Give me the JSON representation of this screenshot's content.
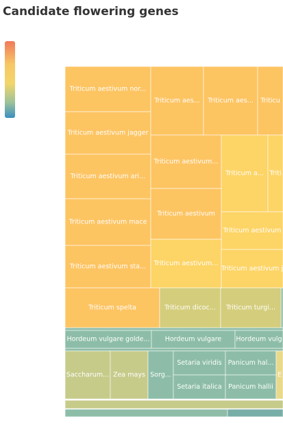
{
  "title": "Candidate flowering genes",
  "cells": [
    {
      "label": "Triticum aestivum nor..."
    },
    {
      "label": "Triticum aestivum jagger"
    },
    {
      "label": "Triticum aestivum ari..."
    },
    {
      "label": "Triticum aestivum mace"
    },
    {
      "label": "Triticum aestivum sta..."
    },
    {
      "label": "Triticum aes..."
    },
    {
      "label": "Triticum aes..."
    },
    {
      "label": "Triticu"
    },
    {
      "label": "Triticum aestivum..."
    },
    {
      "label": "Triticum a..."
    },
    {
      "label": "Triti"
    },
    {
      "label": "Triticum aestivum"
    },
    {
      "label": "Triticum aestivum"
    },
    {
      "label": "Triticum aestivum..."
    },
    {
      "label": "Triticum aestivum j"
    },
    {
      "label": "Triticum spelta"
    },
    {
      "label": "Triticum dicoc..."
    },
    {
      "label": "Triticum turgi..."
    },
    {
      "label": "Hordeum vulgare golde..."
    },
    {
      "label": "Hordeum vulgare"
    },
    {
      "label": "Hordeum vulg"
    },
    {
      "label": "Saccharum..."
    },
    {
      "label": "Zea mays"
    },
    {
      "label": "Sorg..."
    },
    {
      "label": "Setaria viridis"
    },
    {
      "label": "Setaria italica"
    },
    {
      "label": "Panicum hal..."
    },
    {
      "label": "Panicum hallii"
    },
    {
      "label": "E"
    }
  ]
}
